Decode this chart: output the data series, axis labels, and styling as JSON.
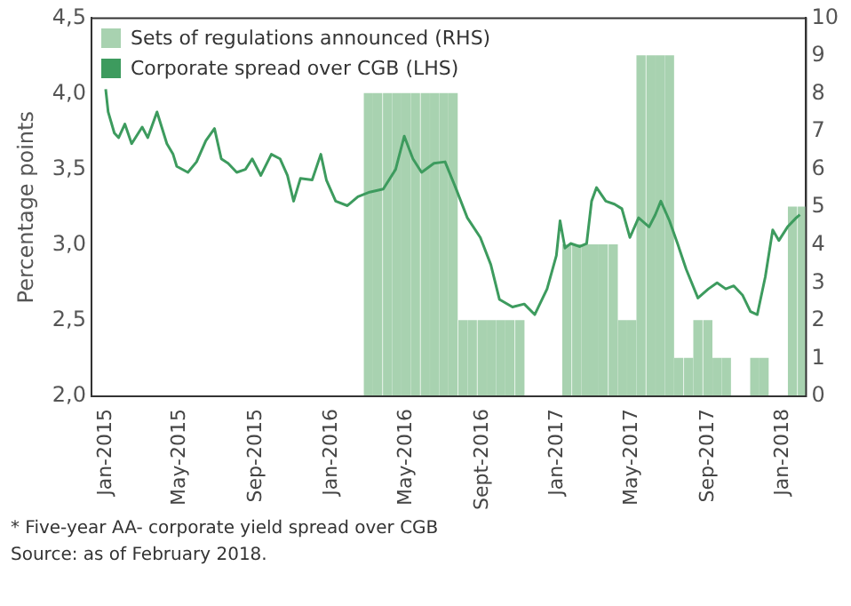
{
  "chart_data": {
    "type": "line",
    "ylabel": "Percentage points",
    "legend": "top left",
    "marker": "none",
    "grid": false,
    "xlim": [
      "2014-12-09",
      "2018-02-07"
    ],
    "xticks": [
      {
        "value": "2015-01-01",
        "label": "Jan-2015"
      },
      {
        "value": "2015-05-01",
        "label": "May-2015"
      },
      {
        "value": "2015-09-01",
        "label": "Sep-2015"
      },
      {
        "value": "2016-01-01",
        "label": "Jan-2016"
      },
      {
        "value": "2016-05-01",
        "label": "May-2016"
      },
      {
        "value": "2016-09-01",
        "label": "Sept-2016"
      },
      {
        "value": "2017-01-01",
        "label": "Jan-2017"
      },
      {
        "value": "2017-05-01",
        "label": "May-2017"
      },
      {
        "value": "2017-09-01",
        "label": "Sep-2017"
      },
      {
        "value": "2018-01-01",
        "label": "Jan-2018"
      }
    ],
    "ylim": [
      2.0,
      4.5
    ],
    "yticks": [
      {
        "value": 2.0,
        "label": "2,0"
      },
      {
        "value": 2.5,
        "label": "2,5"
      },
      {
        "value": 3.0,
        "label": "3,0"
      },
      {
        "value": 3.5,
        "label": "3,5"
      },
      {
        "value": 4.0,
        "label": "4,0"
      },
      {
        "value": 4.5,
        "label": "4,5"
      }
    ],
    "y2lim": [
      0,
      10
    ],
    "y2ticks": [
      0,
      1,
      2,
      3,
      4,
      5,
      6,
      7,
      8,
      9,
      10
    ],
    "series": [
      {
        "name": "Sets of regulations announced (RHS)",
        "type": "bar",
        "axis": "y2",
        "color": "#a8d2b0",
        "x": [
          "2016-03-01",
          "2016-03-16",
          "2016-04-01",
          "2016-04-16",
          "2016-05-01",
          "2016-05-16",
          "2016-06-01",
          "2016-06-16",
          "2016-07-01",
          "2016-07-16",
          "2016-08-01",
          "2016-08-16",
          "2016-09-01",
          "2016-09-16",
          "2016-10-01",
          "2016-10-16",
          "2016-11-01",
          "2017-01-16",
          "2017-02-01",
          "2017-02-16",
          "2017-03-01",
          "2017-03-16",
          "2017-04-01",
          "2017-04-16",
          "2017-05-01",
          "2017-05-16",
          "2017-06-01",
          "2017-06-16",
          "2017-07-01",
          "2017-07-16",
          "2017-08-01",
          "2017-08-16",
          "2017-09-01",
          "2017-09-16",
          "2017-10-01",
          "2017-11-16",
          "2017-12-01",
          "2018-01-16",
          "2018-02-01"
        ],
        "values": [
          8,
          8,
          8,
          8,
          8,
          8,
          8,
          8,
          8,
          8,
          2,
          2,
          2,
          2,
          2,
          2,
          2,
          4,
          4,
          4,
          4,
          4,
          4,
          2,
          2,
          9,
          9,
          9,
          9,
          1,
          1,
          2,
          2,
          1,
          1,
          1,
          1,
          5,
          5
        ]
      },
      {
        "name": "Corporate spread over CGB (LHS)",
        "color": "#3d9b5e",
        "x": [
          "2015-01-01",
          "2015-01-05",
          "2015-01-15",
          "2015-01-22",
          "2015-02-01",
          "2015-02-12",
          "2015-03-01",
          "2015-03-10",
          "2015-03-25",
          "2015-04-10",
          "2015-04-20",
          "2015-04-26",
          "2015-05-14",
          "2015-05-28",
          "2015-06-12",
          "2015-06-26",
          "2015-07-07",
          "2015-07-18",
          "2015-08-01",
          "2015-08-15",
          "2015-08-26",
          "2015-09-09",
          "2015-09-26",
          "2015-10-10",
          "2015-10-22",
          "2015-11-01",
          "2015-11-12",
          "2015-12-01",
          "2015-12-15",
          "2015-12-24",
          "2016-01-08",
          "2016-01-27",
          "2016-02-13",
          "2016-03-03",
          "2016-03-25",
          "2016-04-14",
          "2016-04-28",
          "2016-05-12",
          "2016-05-26",
          "2016-06-15",
          "2016-07-03",
          "2016-07-20",
          "2016-08-08",
          "2016-08-29",
          "2016-09-15",
          "2016-09-29",
          "2016-10-20",
          "2016-11-08",
          "2016-11-25",
          "2016-12-15",
          "2016-12-30",
          "2017-01-05",
          "2017-01-13",
          "2017-01-22",
          "2017-02-06",
          "2017-02-17",
          "2017-02-25",
          "2017-03-05",
          "2017-03-20",
          "2017-04-03",
          "2017-04-15",
          "2017-04-28",
          "2017-05-12",
          "2017-05-29",
          "2017-06-08",
          "2017-06-17",
          "2017-07-01",
          "2017-07-14",
          "2017-07-28",
          "2017-08-16",
          "2017-09-02",
          "2017-09-16",
          "2017-09-30",
          "2017-10-13",
          "2017-10-27",
          "2017-11-09",
          "2017-11-20",
          "2017-12-03",
          "2017-12-15",
          "2017-12-25",
          "2018-01-08",
          "2018-01-22",
          "2018-01-28"
        ],
        "values": [
          4.03,
          3.88,
          3.74,
          3.71,
          3.8,
          3.67,
          3.78,
          3.71,
          3.88,
          3.67,
          3.6,
          3.52,
          3.48,
          3.55,
          3.69,
          3.77,
          3.57,
          3.54,
          3.48,
          3.5,
          3.57,
          3.46,
          3.6,
          3.57,
          3.46,
          3.29,
          3.44,
          3.43,
          3.6,
          3.43,
          3.29,
          3.26,
          3.32,
          3.35,
          3.37,
          3.5,
          3.72,
          3.57,
          3.48,
          3.54,
          3.55,
          3.38,
          3.18,
          3.05,
          2.87,
          2.64,
          2.59,
          2.61,
          2.54,
          2.71,
          2.93,
          3.16,
          2.98,
          3.01,
          2.99,
          3.01,
          3.29,
          3.38,
          3.29,
          3.27,
          3.24,
          3.05,
          3.18,
          3.12,
          3.2,
          3.29,
          3.16,
          3.01,
          2.84,
          2.65,
          2.71,
          2.75,
          2.71,
          2.73,
          2.67,
          2.56,
          2.54,
          2.79,
          3.1,
          3.03,
          3.12,
          3.18,
          3.2
        ]
      }
    ],
    "annotations": [
      "* Five-year AA- corporate yield spread over CGB",
      "Source: as of February 2018."
    ]
  }
}
